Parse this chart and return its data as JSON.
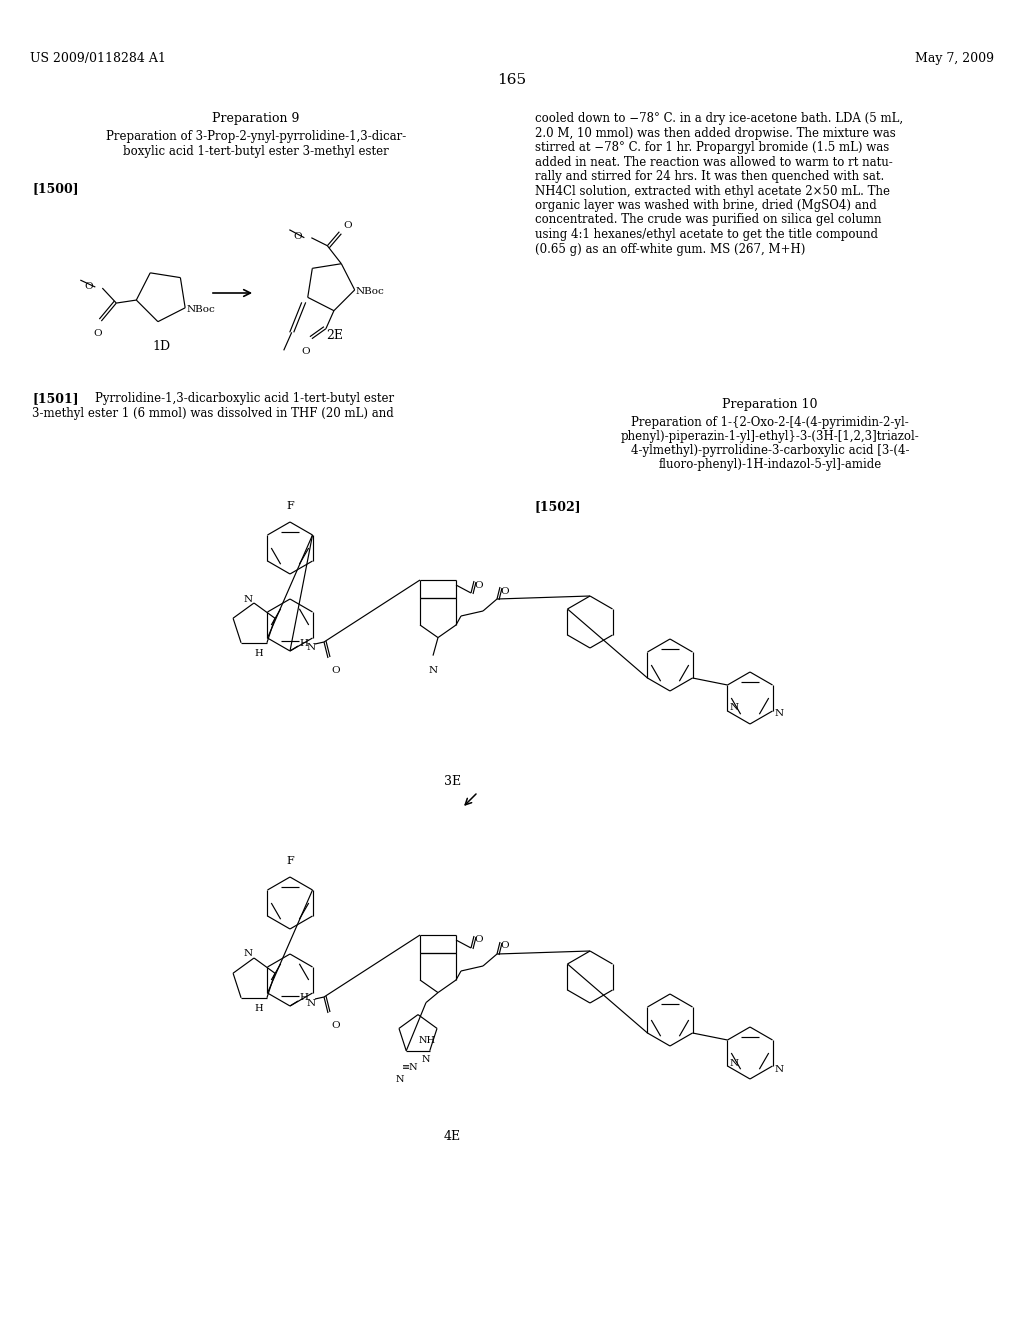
{
  "bg_color": "#ffffff",
  "header_left": "US 2009/0118284 A1",
  "header_right": "May 7, 2009",
  "page_number": "165",
  "prep9_title": "Preparation 9",
  "prep9_sub1": "Preparation of 3-Prop-2-ynyl-pyrrolidine-1,3-dicar-",
  "prep9_sub2": "boxylic acid 1-tert-butyl ester 3-methyl ester",
  "tag_1500": "[1500]",
  "label_1D": "1D",
  "label_2E": "2E",
  "tag_1501": "[1501]",
  "text_1501a": "Pyrrolidine-1,3-dicarboxylic acid 1-tert-butyl ester",
  "text_1501b": "3-methyl ester 1 (6 mmol) was dissolved in THF (20 mL) and",
  "right_lines": [
    "cooled down to −78° C. in a dry ice-acetone bath. LDA (5 mL,",
    "2.0 M, 10 mmol) was then added dropwise. The mixture was",
    "stirred at −78° C. for 1 hr. Propargyl bromide (1.5 mL) was",
    "added in neat. The reaction was allowed to warm to rt natu-",
    "rally and stirred for 24 hrs. It was then quenched with sat.",
    "NH4Cl solution, extracted with ethyl acetate 2×50 mL. The",
    "organic layer was washed with brine, dried (MgSO4) and",
    "concentrated. The crude was purified on silica gel column",
    "using 4:1 hexanes/ethyl acetate to get the title compound",
    "(0.65 g) as an off-white gum. MS (267, M+H)"
  ],
  "prep10_title": "Preparation 10",
  "prep10_sub1": "Preparation of 1-{2-Oxo-2-[4-(4-pyrimidin-2-yl-",
  "prep10_sub2": "phenyl)-piperazin-1-yl]-ethyl}-3-(3H-[1,2,3]triazol-",
  "prep10_sub3": "4-ylmethyl)-pyrrolidine-3-carboxylic acid [3-(4-",
  "prep10_sub4": "fluoro-phenyl)-1H-indazol-5-yl]-amide",
  "tag_1502": "[1502]",
  "label_3E": "3E",
  "label_4E": "4E"
}
